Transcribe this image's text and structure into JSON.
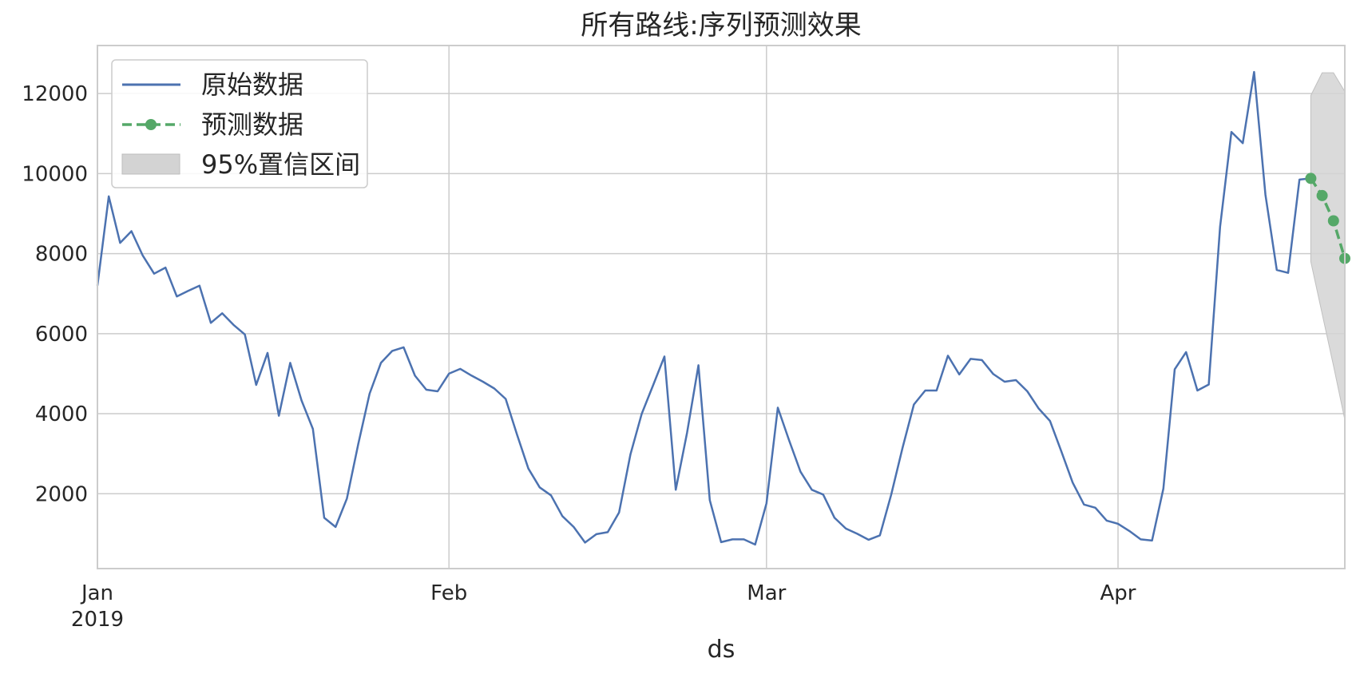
{
  "chart_data": {
    "type": "line",
    "title": "所有路线:序列预测效果",
    "xlabel": "ds",
    "ylabel": "",
    "x_start": "2019-01-01",
    "x_end": "2019-04-21",
    "ylim": [
      130,
      13200
    ],
    "y_ticks": [
      2000,
      4000,
      6000,
      8000,
      10000,
      12000
    ],
    "y_tick_labels": [
      "2000",
      "4000",
      "6000",
      "8000",
      "10000",
      "12000"
    ],
    "x_ticks": [
      {
        "date": "2019-01-01",
        "label": "Jan",
        "sublabel": "2019"
      },
      {
        "date": "2019-02-01",
        "label": "Feb",
        "sublabel": ""
      },
      {
        "date": "2019-03-01",
        "label": "Mar",
        "sublabel": ""
      },
      {
        "date": "2019-04-01",
        "label": "Apr",
        "sublabel": ""
      }
    ],
    "grid": true,
    "legend": {
      "placement": "top-left",
      "entries": [
        "原始数据",
        "预测数据",
        "95%置信区间"
      ]
    },
    "colors": {
      "original": "#4c72b0",
      "forecast": "#55a868",
      "interval": "#d3d3d3",
      "grid": "#cccccc",
      "axes": "#cccccc"
    },
    "series": [
      {
        "name": "原始数据",
        "style": "solid",
        "x": [
          "2019-01-01",
          "2019-01-02",
          "2019-01-03",
          "2019-01-04",
          "2019-01-05",
          "2019-01-06",
          "2019-01-07",
          "2019-01-08",
          "2019-01-09",
          "2019-01-10",
          "2019-01-11",
          "2019-01-12",
          "2019-01-13",
          "2019-01-14",
          "2019-01-15",
          "2019-01-16",
          "2019-01-17",
          "2019-01-18",
          "2019-01-19",
          "2019-01-20",
          "2019-01-21",
          "2019-01-22",
          "2019-01-23",
          "2019-01-24",
          "2019-01-25",
          "2019-01-26",
          "2019-01-27",
          "2019-01-28",
          "2019-01-29",
          "2019-01-30",
          "2019-01-31",
          "2019-02-01",
          "2019-02-02",
          "2019-02-03",
          "2019-02-04",
          "2019-02-05",
          "2019-02-06",
          "2019-02-07",
          "2019-02-08",
          "2019-02-09",
          "2019-02-10",
          "2019-02-11",
          "2019-02-12",
          "2019-02-13",
          "2019-02-14",
          "2019-02-15",
          "2019-02-16",
          "2019-02-17",
          "2019-02-18",
          "2019-02-19",
          "2019-02-20",
          "2019-02-21",
          "2019-02-22",
          "2019-02-23",
          "2019-02-24",
          "2019-02-25",
          "2019-02-26",
          "2019-02-27",
          "2019-02-28",
          "2019-03-01",
          "2019-03-02",
          "2019-03-03",
          "2019-03-04",
          "2019-03-05",
          "2019-03-06",
          "2019-03-07",
          "2019-03-08",
          "2019-03-09",
          "2019-03-10",
          "2019-03-11",
          "2019-03-12",
          "2019-03-13",
          "2019-03-14",
          "2019-03-15",
          "2019-03-16",
          "2019-03-17",
          "2019-03-18",
          "2019-03-19",
          "2019-03-20",
          "2019-03-21",
          "2019-03-22",
          "2019-03-23",
          "2019-03-24",
          "2019-03-25",
          "2019-03-26",
          "2019-03-27",
          "2019-03-28",
          "2019-03-29",
          "2019-03-30",
          "2019-03-31",
          "2019-04-01",
          "2019-04-02",
          "2019-04-03",
          "2019-04-04",
          "2019-04-05",
          "2019-04-06",
          "2019-04-07",
          "2019-04-08",
          "2019-04-09",
          "2019-04-10",
          "2019-04-11",
          "2019-04-12",
          "2019-04-13",
          "2019-04-14",
          "2019-04-15",
          "2019-04-16",
          "2019-04-17",
          "2019-04-18"
        ],
        "values": [
          7200,
          9430,
          8270,
          8560,
          7950,
          7500,
          7650,
          6930,
          7070,
          7200,
          6270,
          6510,
          6220,
          5980,
          4720,
          5520,
          3950,
          5270,
          4330,
          3620,
          1400,
          1170,
          1880,
          3240,
          4500,
          5270,
          5570,
          5660,
          4950,
          4600,
          4560,
          5000,
          5120,
          4950,
          4800,
          4630,
          4370,
          3480,
          2630,
          2160,
          1960,
          1440,
          1170,
          780,
          990,
          1040,
          1530,
          2980,
          4000,
          4710,
          5430,
          2100,
          3530,
          5210,
          1840,
          790,
          860,
          860,
          730,
          1760,
          4150,
          3330,
          2550,
          2100,
          1980,
          1400,
          1130,
          1000,
          850,
          960,
          1980,
          3150,
          4230,
          4580,
          4580,
          5450,
          4980,
          5370,
          5340,
          4990,
          4800,
          4840,
          4560,
          4130,
          3820,
          3060,
          2280,
          1730,
          1650,
          1330,
          1250,
          1070,
          860,
          830,
          2130,
          5110,
          5540,
          4580,
          4730,
          8670,
          11040,
          10760,
          12540,
          9470,
          7590,
          7520,
          9850,
          9880
        ]
      },
      {
        "name": "预测数据",
        "style": "dashed-marker",
        "x": [
          "2019-04-18",
          "2019-04-19",
          "2019-04-20",
          "2019-04-21"
        ],
        "values": [
          9880,
          9450,
          8820,
          7880
        ]
      }
    ],
    "interval": {
      "name": "95%置信区间",
      "x": [
        "2019-04-18",
        "2019-04-19",
        "2019-04-20",
        "2019-04-21"
      ],
      "upper": [
        11950,
        12520,
        12520,
        12050
      ],
      "lower": [
        7800,
        6500,
        5200,
        3850
      ]
    }
  }
}
